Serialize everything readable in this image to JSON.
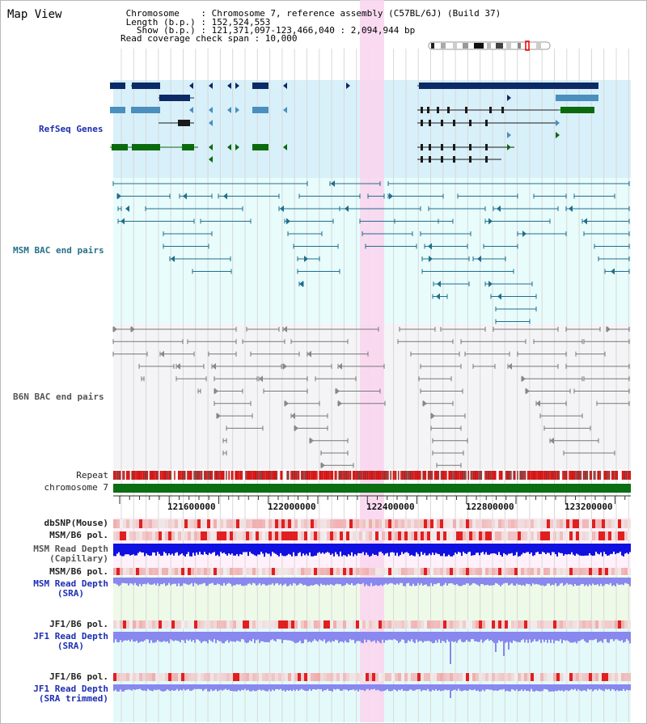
{
  "view_title": "Map View",
  "header": {
    "chromosome_line": " Chromosome    : Chromosome 7, reference assembly (C57BL/6J) (Build 37)",
    "length_line": " Length (b.p.) : 152,524,553",
    "show_line": "   Show (b.p.) : 121,371,097-123,466,040 : 2,094,944 bp",
    "coverage_line": "Read coverage check span : 10,000"
  },
  "tracks": {
    "refseq": "RefSeq Genes",
    "msm_bac": "MSM BAC end pairs",
    "b6n_bac": "B6N BAC end pairs",
    "repeat": "Repeat",
    "chromosome": "chromosome 7",
    "dbsnp": "dbSNP(Mouse)",
    "msm_b6_pol": "MSM/B6 pol.",
    "msm_read_depth_cap_1": "MSM Read Depth",
    "msm_read_depth_cap_2": "(Capillary)",
    "msm_b6_pol_2": "MSM/B6 pol.",
    "msm_read_depth_sra_1": "MSM Read Depth",
    "msm_read_depth_sra_2": "(SRA)",
    "jf1_b6_pol": "JF1/B6 pol.",
    "jf1_read_depth_sra_1": "JF1 Read Depth",
    "jf1_read_depth_sra_2": "(SRA)",
    "jf1_b6_pol_2": "JF1/B6 pol.",
    "jf1_read_depth_trim_1": "JF1 Read Depth",
    "jf1_read_depth_trim_2": "(SRA trimmed)"
  },
  "axis_ticks": [
    "121600000",
    "122000000",
    "122400000",
    "122800000",
    "123200000"
  ],
  "colors": {
    "refseq_bg": "#d8f0fa",
    "bac_bg": "#e8fcfc",
    "b6n_bg": "#f4f4f6",
    "highlight": "#f9d6f0",
    "refseq_dark": "#0c2a66",
    "refseq_mid": "#4a8fbd",
    "refseq_green": "#0b6a0e",
    "msm_line": "#1f6e8c",
    "b6n_line": "#777777",
    "chromosome_bar": "#0b6e12",
    "read_depth_dark": "#1010e0",
    "read_depth_light": "#8888ee",
    "pol_red": "#e84848"
  }
}
